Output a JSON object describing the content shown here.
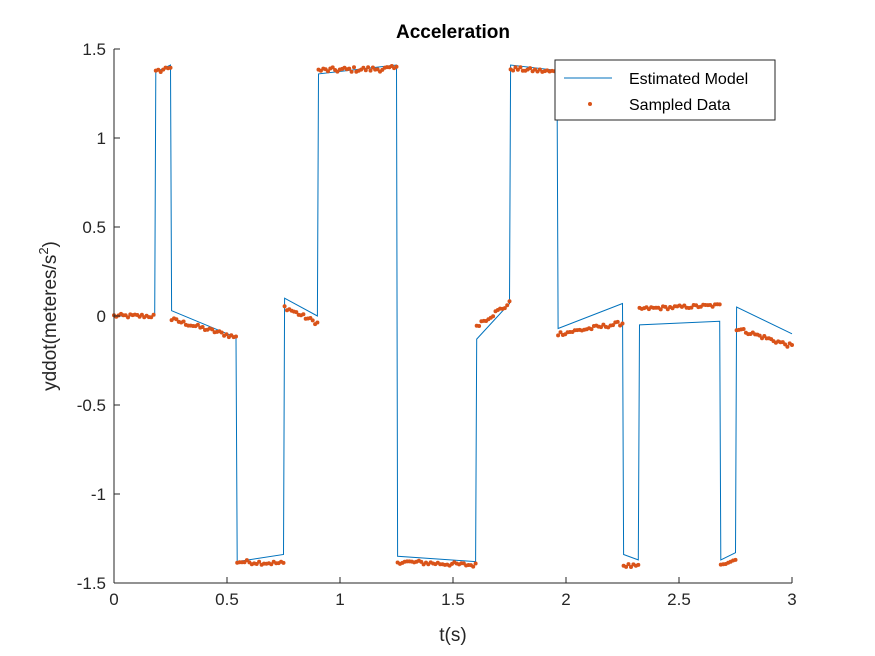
{
  "chart_data": {
    "type": "line",
    "title": "Acceleration",
    "xlabel": "t(s)",
    "ylabel_main": "yddot(meteres/s",
    "ylabel_sup": "2",
    "ylabel_end": ")",
    "xlim": [
      0,
      3
    ],
    "ylim": [
      -1.5,
      1.5
    ],
    "xticks": [
      0,
      0.5,
      1,
      1.5,
      2,
      2.5,
      3
    ],
    "xtick_labels": [
      "0",
      "0.5",
      "1",
      "1.5",
      "2",
      "2.5",
      "3"
    ],
    "yticks": [
      -1.5,
      -1,
      -0.5,
      0,
      0.5,
      1,
      1.5
    ],
    "ytick_labels": [
      "-1.5",
      "-1",
      "-0.5",
      "0",
      "0.5",
      "1",
      "1.5"
    ],
    "grid": false,
    "legend_position": "top-right",
    "colors": {
      "model": "#0072bd",
      "sampled": "#d95319",
      "axis": "#262626"
    },
    "series": [
      {
        "name": "Estimated Model",
        "style": "line",
        "x": [
          0,
          0.18,
          0.185,
          0.25,
          0.255,
          0.54,
          0.545,
          0.75,
          0.755,
          0.9,
          0.905,
          1.25,
          1.255,
          1.6,
          1.605,
          1.75,
          1.755,
          1.96,
          1.965,
          2.25,
          2.255,
          2.32,
          2.325,
          2.68,
          2.685,
          2.75,
          2.755,
          3.0
        ],
        "y": [
          0.0,
          0.0,
          1.37,
          1.41,
          0.03,
          -0.12,
          -1.38,
          -1.34,
          0.1,
          0.0,
          1.36,
          1.41,
          -1.35,
          -1.38,
          -0.13,
          0.07,
          1.41,
          1.38,
          -0.07,
          0.07,
          -1.34,
          -1.37,
          -0.05,
          -0.03,
          -1.37,
          -1.33,
          0.05,
          -0.1
        ]
      },
      {
        "name": "Sampled Data",
        "style": "dots",
        "segments": [
          {
            "x0": 0.0,
            "x1": 0.175,
            "y0": 0.0,
            "y1": 0.0,
            "n": 18,
            "noise": 0.012
          },
          {
            "x0": 0.185,
            "x1": 0.25,
            "y0": 1.37,
            "y1": 1.4,
            "n": 7,
            "noise": 0.012
          },
          {
            "x0": 0.255,
            "x1": 0.54,
            "y0": -0.02,
            "y1": -0.12,
            "n": 28,
            "noise": 0.012
          },
          {
            "x0": 0.545,
            "x1": 0.75,
            "y0": -1.38,
            "y1": -1.39,
            "n": 20,
            "noise": 0.012
          },
          {
            "x0": 0.755,
            "x1": 0.9,
            "y0": 0.05,
            "y1": -0.04,
            "n": 15,
            "noise": 0.012
          },
          {
            "x0": 0.905,
            "x1": 1.25,
            "y0": 1.38,
            "y1": 1.39,
            "n": 34,
            "noise": 0.015
          },
          {
            "x0": 1.255,
            "x1": 1.6,
            "y0": -1.38,
            "y1": -1.4,
            "n": 34,
            "noise": 0.012
          },
          {
            "x0": 1.605,
            "x1": 1.75,
            "y0": -0.05,
            "y1": 0.07,
            "n": 15,
            "noise": 0.015
          },
          {
            "x0": 1.755,
            "x1": 1.96,
            "y0": 1.39,
            "y1": 1.37,
            "n": 20,
            "noise": 0.012
          },
          {
            "x0": 1.965,
            "x1": 2.25,
            "y0": -0.1,
            "y1": -0.04,
            "n": 28,
            "noise": 0.012
          },
          {
            "x0": 2.255,
            "x1": 2.32,
            "y0": -1.4,
            "y1": -1.41,
            "n": 7,
            "noise": 0.012
          },
          {
            "x0": 2.325,
            "x1": 2.68,
            "y0": 0.04,
            "y1": 0.06,
            "n": 35,
            "noise": 0.01
          },
          {
            "x0": 2.685,
            "x1": 2.75,
            "y0": -1.39,
            "y1": -1.37,
            "n": 7,
            "noise": 0.012
          },
          {
            "x0": 2.755,
            "x1": 3.0,
            "y0": -0.07,
            "y1": -0.17,
            "n": 25,
            "noise": 0.012
          }
        ]
      }
    ]
  }
}
